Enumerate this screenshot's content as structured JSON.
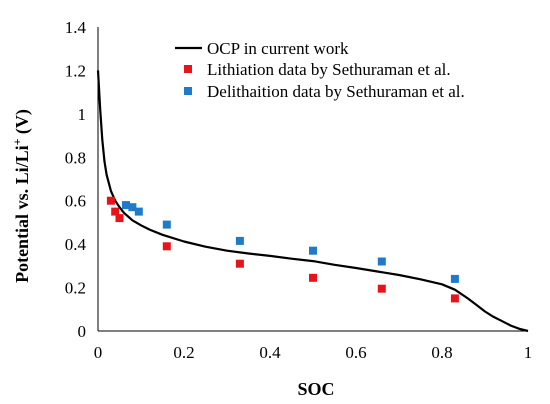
{
  "chart_data": {
    "type": "line",
    "xlabel": "SOC",
    "ylabel_main": "Potential vs. Li/Li",
    "ylabel_sup": "+",
    "ylabel_tail": " (V)",
    "xlim": [
      0,
      1
    ],
    "ylim": [
      0,
      1.4
    ],
    "xticks": [
      "0",
      "0.2",
      "0.4",
      "0.6",
      "0.8",
      "1"
    ],
    "yticks": [
      "0",
      "0.2",
      "0.4",
      "0.6",
      "0.8",
      "1",
      "1.2",
      "1.4"
    ],
    "grid": false,
    "legend_position": "top-right",
    "series": [
      {
        "name": "OCP in current work",
        "kind": "line",
        "color": "#000000",
        "x": [
          0.0,
          0.005,
          0.01,
          0.015,
          0.02,
          0.03,
          0.04,
          0.05,
          0.06,
          0.08,
          0.1,
          0.12,
          0.15,
          0.2,
          0.25,
          0.3,
          0.35,
          0.4,
          0.45,
          0.5,
          0.55,
          0.6,
          0.65,
          0.7,
          0.75,
          0.8,
          0.83,
          0.86,
          0.88,
          0.9,
          0.92,
          0.94,
          0.96,
          0.98,
          1.0
        ],
        "y": [
          1.2,
          1.02,
          0.88,
          0.78,
          0.72,
          0.645,
          0.6,
          0.57,
          0.545,
          0.51,
          0.487,
          0.467,
          0.443,
          0.412,
          0.388,
          0.37,
          0.357,
          0.346,
          0.333,
          0.322,
          0.305,
          0.29,
          0.274,
          0.258,
          0.238,
          0.215,
          0.19,
          0.15,
          0.12,
          0.09,
          0.065,
          0.045,
          0.025,
          0.01,
          0.0
        ]
      },
      {
        "name": "Lithiation data by Sethuraman et al.",
        "kind": "scatter",
        "color": "#e8141c",
        "x": [
          0.03,
          0.04,
          0.05,
          0.16,
          0.33,
          0.5,
          0.66,
          0.83
        ],
        "y": [
          0.6,
          0.55,
          0.52,
          0.39,
          0.31,
          0.245,
          0.195,
          0.15
        ]
      },
      {
        "name": "Delithaition data by Sethuraman et al.",
        "kind": "scatter",
        "color": "#1f7ac9",
        "x": [
          0.065,
          0.08,
          0.095,
          0.16,
          0.33,
          0.5,
          0.66,
          0.83
        ],
        "y": [
          0.58,
          0.57,
          0.55,
          0.49,
          0.415,
          0.37,
          0.32,
          0.24
        ]
      }
    ]
  }
}
